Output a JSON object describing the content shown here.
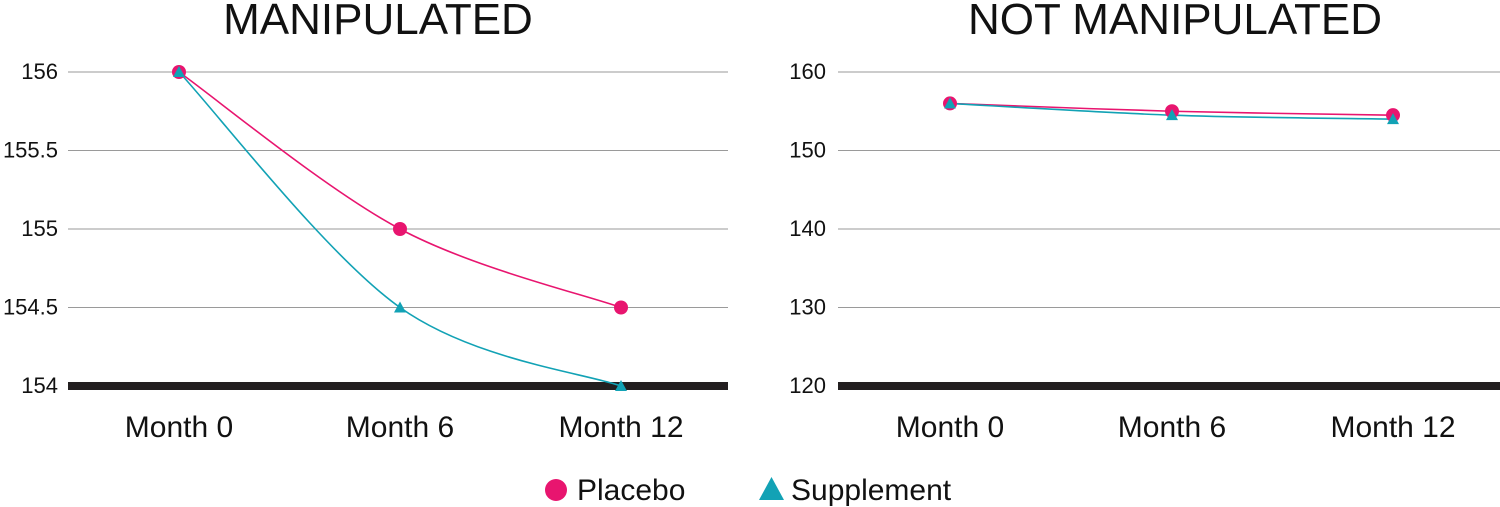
{
  "colors": {
    "placebo": "#e8156f",
    "supplement": "#12a2b5",
    "baseline": "#231f20",
    "grid": "#9a9a9a"
  },
  "legend": {
    "placebo_label": "Placebo",
    "supplement_label": "Supplement",
    "placebo_icon": "circle-marker-icon",
    "supplement_icon": "triangle-marker-icon"
  },
  "chart_data": [
    {
      "type": "line",
      "title": "MANIPULATED",
      "categories": [
        "Month 0",
        "Month 6",
        "Month 12"
      ],
      "ylim": [
        154,
        156
      ],
      "yticks": [
        "154",
        "154.5",
        "155",
        "155.5",
        "156"
      ],
      "grid": true,
      "legend_position": "bottom",
      "series": [
        {
          "name": "Placebo",
          "marker": "circle",
          "values": [
            156,
            155,
            154.5
          ]
        },
        {
          "name": "Supplement",
          "marker": "triangle",
          "values": [
            156,
            154.5,
            154
          ]
        }
      ]
    },
    {
      "type": "line",
      "title": "NOT MANIPULATED",
      "categories": [
        "Month 0",
        "Month 6",
        "Month 12"
      ],
      "ylim": [
        120,
        160
      ],
      "yticks": [
        "120",
        "130",
        "140",
        "150",
        "160"
      ],
      "grid": true,
      "legend_position": "bottom",
      "series": [
        {
          "name": "Placebo",
          "marker": "circle",
          "values": [
            156,
            155,
            154.5
          ]
        },
        {
          "name": "Supplement",
          "marker": "triangle",
          "values": [
            156,
            154.5,
            154
          ]
        }
      ]
    }
  ]
}
